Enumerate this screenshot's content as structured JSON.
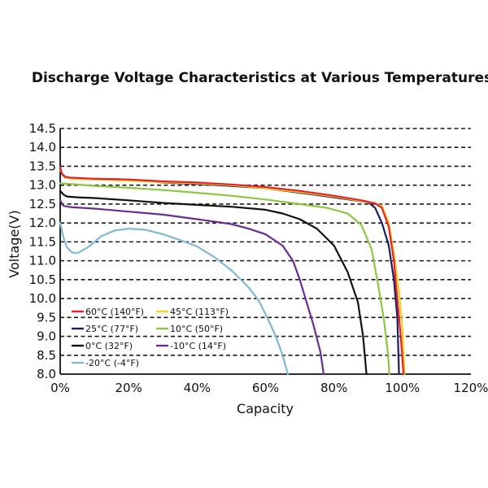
{
  "chart_data": {
    "type": "line",
    "title": "Discharge Voltage Characteristics at Various Temperatures",
    "xlabel": "Capacity",
    "ylabel": "Voltage(V)",
    "xlim": [
      0,
      120
    ],
    "ylim": [
      8.0,
      14.5
    ],
    "x_ticks": [
      0,
      20,
      40,
      60,
      80,
      100,
      120
    ],
    "x_tick_labels": [
      "0%",
      "20%",
      "40%",
      "60%",
      "80%",
      "100%",
      "120%"
    ],
    "y_ticks": [
      8.0,
      8.5,
      9.0,
      9.5,
      10.0,
      10.5,
      11.0,
      11.5,
      12.0,
      12.5,
      13.0,
      13.5,
      14.0,
      14.5
    ],
    "y_tick_labels": [
      "8.0",
      "8.5",
      "9.0",
      "9.5",
      "10.0",
      "10.5",
      "11.0",
      "11.5",
      "12.0",
      "12.5",
      "13.0",
      "13.5",
      "14.0",
      "14.5"
    ],
    "grid": "horizontal-dashed",
    "legend_position": "bottom-left",
    "series": [
      {
        "name": "60°C (140°F)",
        "color": "#e8202a",
        "points": [
          [
            0,
            13.48
          ],
          [
            0.5,
            13.3
          ],
          [
            1.5,
            13.22
          ],
          [
            3,
            13.2
          ],
          [
            10,
            13.17
          ],
          [
            20,
            13.15
          ],
          [
            30,
            13.1
          ],
          [
            40,
            13.07
          ],
          [
            50,
            13.02
          ],
          [
            60,
            12.95
          ],
          [
            70,
            12.85
          ],
          [
            80,
            12.72
          ],
          [
            88,
            12.6
          ],
          [
            92,
            12.52
          ],
          [
            94,
            12.4
          ],
          [
            96,
            11.9
          ],
          [
            97.5,
            11.0
          ],
          [
            98.5,
            10.0
          ],
          [
            99.5,
            9.0
          ],
          [
            100.3,
            8.0
          ]
        ]
      },
      {
        "name": "45°C (113°F)",
        "color": "#f5d21c",
        "points": [
          [
            0,
            13.4
          ],
          [
            1.5,
            13.2
          ],
          [
            3,
            13.17
          ],
          [
            10,
            13.15
          ],
          [
            20,
            13.12
          ],
          [
            30,
            13.08
          ],
          [
            40,
            13.05
          ],
          [
            50,
            13.0
          ],
          [
            60,
            12.92
          ],
          [
            70,
            12.82
          ],
          [
            80,
            12.7
          ],
          [
            88,
            12.58
          ],
          [
            92,
            12.52
          ],
          [
            94,
            12.45
          ],
          [
            96,
            12.0
          ],
          [
            97.5,
            11.2
          ],
          [
            99,
            10.2
          ],
          [
            100,
            9.2
          ],
          [
            100.6,
            8.0
          ]
        ]
      },
      {
        "name": "25°C (77°F)",
        "color": "#1c1f5c",
        "points": [
          [
            0,
            13.35
          ],
          [
            1.5,
            13.2
          ],
          [
            3,
            13.18
          ],
          [
            10,
            13.17
          ],
          [
            20,
            13.15
          ],
          [
            30,
            13.07
          ],
          [
            40,
            13.03
          ],
          [
            50,
            12.98
          ],
          [
            60,
            12.92
          ],
          [
            70,
            12.8
          ],
          [
            80,
            12.68
          ],
          [
            86,
            12.6
          ],
          [
            90,
            12.55
          ],
          [
            92,
            12.4
          ],
          [
            94,
            12.0
          ],
          [
            96,
            11.4
          ],
          [
            97.5,
            10.5
          ],
          [
            98.5,
            9.5
          ],
          [
            99,
            8.0
          ]
        ]
      },
      {
        "name": "10°C (50°F)",
        "color": "#8dc73f",
        "points": [
          [
            0,
            13.05
          ],
          [
            5,
            13.02
          ],
          [
            10,
            12.98
          ],
          [
            20,
            12.93
          ],
          [
            30,
            12.87
          ],
          [
            40,
            12.8
          ],
          [
            50,
            12.72
          ],
          [
            60,
            12.62
          ],
          [
            70,
            12.5
          ],
          [
            78,
            12.4
          ],
          [
            84,
            12.25
          ],
          [
            88,
            11.95
          ],
          [
            91,
            11.3
          ],
          [
            93,
            10.3
          ],
          [
            94.5,
            9.5
          ],
          [
            95.8,
            8.5
          ],
          [
            96.2,
            8.0
          ]
        ]
      },
      {
        "name": "0°C (32°F)",
        "color": "#111111",
        "points": [
          [
            0,
            12.85
          ],
          [
            1,
            12.75
          ],
          [
            2,
            12.7
          ],
          [
            5,
            12.68
          ],
          [
            10,
            12.66
          ],
          [
            20,
            12.6
          ],
          [
            30,
            12.53
          ],
          [
            40,
            12.48
          ],
          [
            50,
            12.43
          ],
          [
            60,
            12.35
          ],
          [
            65,
            12.25
          ],
          [
            70,
            12.1
          ],
          [
            75,
            11.85
          ],
          [
            80,
            11.4
          ],
          [
            84,
            10.7
          ],
          [
            87,
            9.9
          ],
          [
            88.5,
            9.0
          ],
          [
            89.5,
            8.0
          ]
        ]
      },
      {
        "name": "-10°C (14°F)",
        "color": "#6a2c91",
        "points": [
          [
            0,
            12.6
          ],
          [
            1,
            12.45
          ],
          [
            3,
            12.42
          ],
          [
            10,
            12.38
          ],
          [
            20,
            12.3
          ],
          [
            30,
            12.22
          ],
          [
            40,
            12.1
          ],
          [
            50,
            11.97
          ],
          [
            55,
            11.85
          ],
          [
            60,
            11.7
          ],
          [
            65,
            11.4
          ],
          [
            68,
            11.0
          ],
          [
            70,
            10.5
          ],
          [
            72,
            9.9
          ],
          [
            74,
            9.3
          ],
          [
            76,
            8.6
          ],
          [
            77,
            8.0
          ]
        ]
      },
      {
        "name": "-20°C (-4°F)",
        "color": "#7fb9d4",
        "points": [
          [
            0,
            12.0
          ],
          [
            1,
            11.6
          ],
          [
            2,
            11.35
          ],
          [
            3.5,
            11.22
          ],
          [
            5,
            11.2
          ],
          [
            8,
            11.35
          ],
          [
            12,
            11.65
          ],
          [
            16,
            11.8
          ],
          [
            20,
            11.85
          ],
          [
            25,
            11.82
          ],
          [
            30,
            11.7
          ],
          [
            35,
            11.55
          ],
          [
            40,
            11.38
          ],
          [
            45,
            11.1
          ],
          [
            50,
            10.75
          ],
          [
            55,
            10.3
          ],
          [
            58,
            9.95
          ],
          [
            61,
            9.4
          ],
          [
            63,
            9.0
          ],
          [
            65,
            8.5
          ],
          [
            66.5,
            8.0
          ]
        ]
      }
    ]
  }
}
